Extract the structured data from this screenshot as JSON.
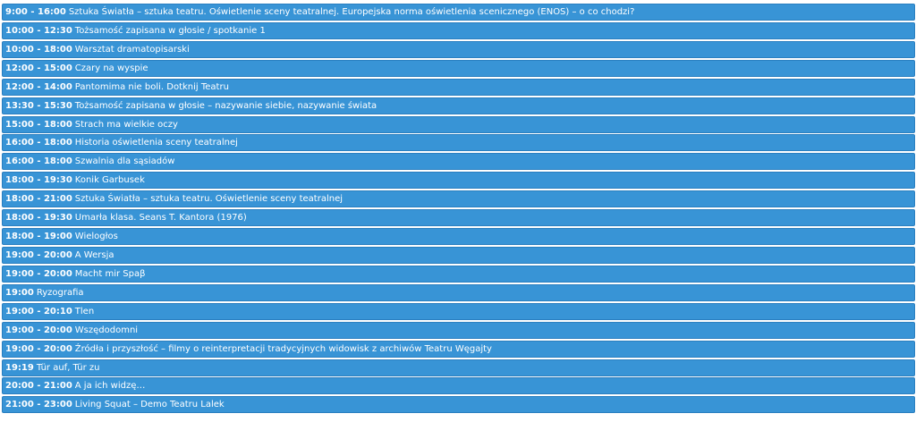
{
  "events": [
    {
      "time": "9:00 - 16:00",
      "title": "Sztuka Światła – sztuka teatru. Oświetlenie sceny teatralnej. Europejska norma oświetlenia scenicznego (ENOS) – o co chodzi?"
    },
    {
      "time": "10:00 - 12:30",
      "title": "Tożsamość zapisana w głosie / spotkanie 1"
    },
    {
      "time": "10:00 - 18:00",
      "title": "Warsztat dramatopisarski"
    },
    {
      "time": "12:00 - 15:00",
      "title": "Czary na wyspie"
    },
    {
      "time": "12:00 - 14:00",
      "title": "Pantomima nie boli. Dotknij Teatru"
    },
    {
      "time": "13:30 - 15:30",
      "title": "Tożsamość zapisana w głosie – nazywanie siebie, nazywanie świata"
    },
    {
      "time": "15:00 - 18:00",
      "title": "Strach ma wielkie oczy"
    },
    {
      "time": "16:00 - 18:00",
      "title": "Historia oświetlenia sceny teatralnej"
    },
    {
      "time": "16:00 - 18:00",
      "title": "Szwalnia dla sąsiadów"
    },
    {
      "time": "18:00 - 19:30",
      "title": "Konik Garbusek"
    },
    {
      "time": "18:00 - 21:00",
      "title": "Sztuka Światła – sztuka teatru. Oświetlenie sceny teatralnej"
    },
    {
      "time": "18:00 - 19:30",
      "title": "Umarła klasa. Seans T. Kantora (1976)"
    },
    {
      "time": "18:00 - 19:00",
      "title": "Wielogłos"
    },
    {
      "time": "19:00 - 20:00",
      "title": "A Wersja"
    },
    {
      "time": "19:00 - 20:00",
      "title": "Macht mir Spaβ"
    },
    {
      "time": "19:00",
      "title": "Ryzografia"
    },
    {
      "time": "19:00 - 20:10",
      "title": "Tlen"
    },
    {
      "time": "19:00 - 20:00",
      "title": "Wszędodomni"
    },
    {
      "time": "19:00 - 20:00",
      "title": "Źródła i przyszłość – filmy o reinterpretacji tradycyjnych widowisk z archiwów Teatru Węgajty"
    },
    {
      "time": "19:19",
      "title": "Tür auf, Tür zu"
    },
    {
      "time": "20:00 - 21:00",
      "title": "A ja ich widzę…"
    },
    {
      "time": "21:00 - 23:00",
      "title": "Living Squat – Demo Teatru Lalek"
    }
  ],
  "colors": {
    "event_background": "#3894d6",
    "event_border": "#2a7fc0",
    "event_text": "#ffffff"
  }
}
